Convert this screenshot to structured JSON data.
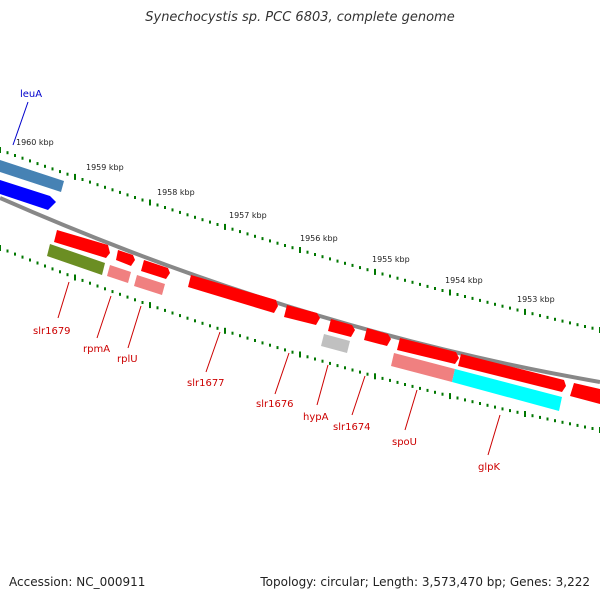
{
  "title": "Synechocystis sp. PCC 6803, complete genome",
  "footer": {
    "accession": "Accession: NC_000911",
    "summary": "Topology: circular; Length: 3,573,470 bp; Genes: 3,222"
  },
  "ruler": {
    "labels": [
      "1960 kbp",
      "1959 kbp",
      "1958 kbp",
      "1957 kbp",
      "1956 kbp",
      "1955 kbp",
      "1954 kbp",
      "1953 kbp"
    ]
  },
  "genes": [
    {
      "label": "leuA",
      "color": "#0000cc"
    },
    {
      "label": "slr1679",
      "color": "#cc0000"
    },
    {
      "label": "rpmA",
      "color": "#cc0000"
    },
    {
      "label": "rplU",
      "color": "#cc0000"
    },
    {
      "label": "slr1677",
      "color": "#cc0000"
    },
    {
      "label": "slr1676",
      "color": "#cc0000"
    },
    {
      "label": "hypA",
      "color": "#cc0000"
    },
    {
      "label": "slr1674",
      "color": "#cc0000"
    },
    {
      "label": "spoU",
      "color": "#cc0000"
    },
    {
      "label": "glpK",
      "color": "#cc0000"
    }
  ],
  "colors": {
    "forward": "#ff0000",
    "reverse": "#0000ff",
    "backbone": "#888888",
    "ticks": "#007700",
    "olive": "#6b8e23",
    "cyan": "#00ffff",
    "pink": "#f08080",
    "grey": "#c0c0c0",
    "steel": "#4682b4"
  }
}
